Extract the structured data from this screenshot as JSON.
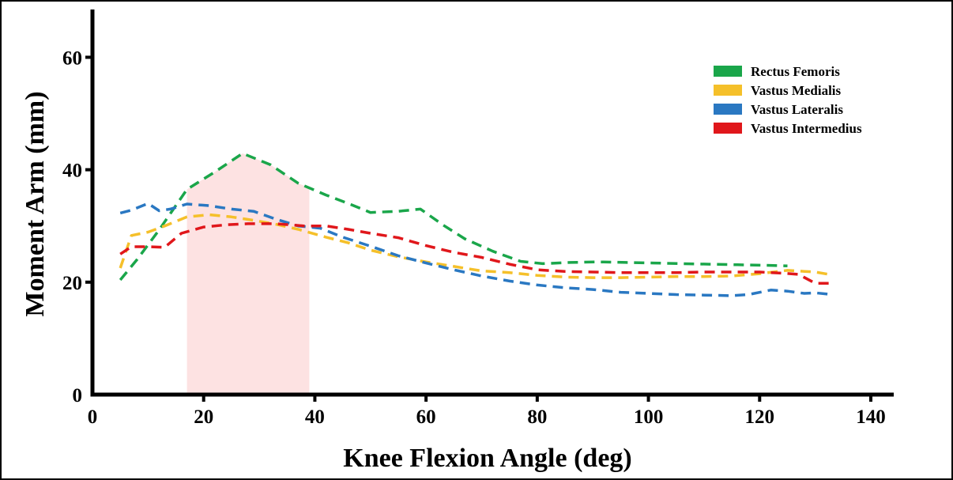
{
  "chart_data": {
    "type": "line",
    "xlabel": "Knee Flexion Angle (deg)",
    "ylabel": "Moment Arm (mm)",
    "xlim": [
      0,
      140
    ],
    "ylim": [
      0,
      64
    ],
    "xticks": [
      "0",
      "20",
      "40",
      "60",
      "80",
      "100",
      "120",
      "140"
    ],
    "yticks": [
      "0",
      "20",
      "40",
      "60"
    ],
    "grid": false,
    "legend_position": "top-right",
    "highlight_region": {
      "x_start": 17,
      "x_end": 39,
      "color": "#fde2e2"
    },
    "series": [
      {
        "name": "Rectus Femoris",
        "color": "#1aa64a",
        "x": [
          5,
          8,
          12,
          17,
          22,
          27,
          32,
          37,
          42,
          46,
          50,
          55,
          59,
          63,
          67,
          72,
          77,
          81,
          86,
          91,
          96,
          101,
          106,
          111,
          116,
          121,
          125
        ],
        "y": [
          20.4,
          24.0,
          29.3,
          36.5,
          39.6,
          42.9,
          40.9,
          37.6,
          35.5,
          34.0,
          32.4,
          32.6,
          33.0,
          30.2,
          27.7,
          25.5,
          23.7,
          23.3,
          23.5,
          23.6,
          23.5,
          23.4,
          23.3,
          23.2,
          23.1,
          23.0,
          22.9
        ]
      },
      {
        "name": "Vastus Medialis",
        "color": "#f5c02a",
        "x": [
          5,
          7,
          10,
          13,
          17,
          21,
          25,
          29,
          33,
          37,
          42,
          46,
          50,
          55,
          60,
          65,
          70,
          75,
          80,
          85,
          90,
          95,
          100,
          105,
          110,
          115,
          120,
          125,
          130,
          133
        ],
        "y": [
          22.5,
          28.3,
          28.9,
          30.0,
          31.6,
          32.0,
          31.6,
          31.0,
          30.3,
          29.4,
          28.0,
          27.0,
          25.7,
          24.5,
          23.6,
          22.8,
          22.0,
          21.7,
          21.2,
          20.9,
          20.8,
          20.8,
          20.9,
          21.0,
          21.0,
          21.1,
          21.5,
          22.1,
          21.8,
          21.3
        ]
      },
      {
        "name": "Vastus Lateralis",
        "color": "#2a78c2",
        "x": [
          5,
          7,
          10,
          12,
          14,
          17,
          21,
          25,
          29,
          33,
          37,
          41,
          45,
          50,
          55,
          60,
          65,
          70,
          75,
          80,
          85,
          90,
          95,
          100,
          105,
          110,
          115,
          118,
          122,
          125,
          128,
          130,
          133
        ],
        "y": [
          32.3,
          32.8,
          34.0,
          32.7,
          33.0,
          33.9,
          33.6,
          33.0,
          32.6,
          31.2,
          30.0,
          29.6,
          28.0,
          26.4,
          24.7,
          23.4,
          22.2,
          21.1,
          20.2,
          19.5,
          19.0,
          18.7,
          18.2,
          18.0,
          17.8,
          17.7,
          17.6,
          17.8,
          18.6,
          18.4,
          18.0,
          18.1,
          17.8
        ]
      },
      {
        "name": "Vastus Intermedius",
        "color": "#e0171b",
        "x": [
          5,
          7,
          10,
          13,
          16,
          20,
          24,
          28,
          33,
          38,
          42,
          46,
          50,
          55,
          60,
          65,
          70,
          75,
          80,
          85,
          90,
          95,
          100,
          105,
          110,
          115,
          120,
          124,
          127,
          130,
          133
        ],
        "y": [
          25.0,
          26.3,
          26.3,
          26.2,
          28.7,
          29.8,
          30.2,
          30.4,
          30.4,
          30.0,
          30.0,
          29.4,
          28.7,
          27.9,
          26.5,
          25.3,
          24.4,
          23.2,
          22.2,
          21.9,
          21.8,
          21.7,
          21.7,
          21.7,
          21.8,
          21.8,
          21.8,
          21.6,
          21.4,
          19.8,
          19.8
        ]
      }
    ]
  }
}
